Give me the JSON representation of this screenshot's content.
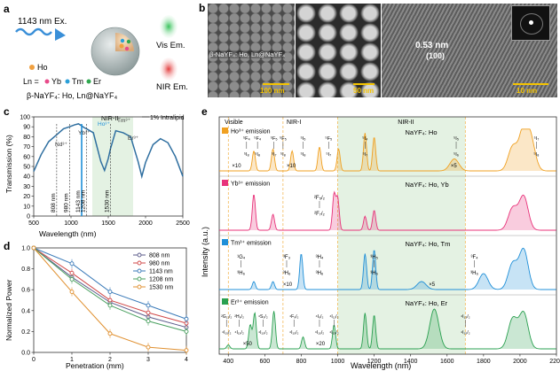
{
  "panels": {
    "a": {
      "letter": "a",
      "excitation": "1143 nm Ex.",
      "vis": "Vis Em.",
      "nir": "NIR Em.",
      "ho": "Ho",
      "ln_prefix": "Ln =",
      "yb": "Yb",
      "tm": "Tm",
      "er": "Er",
      "formula": "β-NaYF₄: Ho, Ln@NaYF₄",
      "colors": {
        "ho": "#f0a040",
        "yb": "#e84a8a",
        "tm": "#2a9fd8",
        "er": "#2fa84f"
      }
    },
    "b": {
      "letter": "b",
      "label1": "β-NaYF₄: Ho, Ln@NaYF₄",
      "scale1": "100 nm",
      "scale2": "50 nm",
      "dspacing": "0.53 nm",
      "plane": "(100)",
      "scale3": "10 nm"
    },
    "c": {
      "letter": "c"
    },
    "d": {
      "letter": "d"
    },
    "e": {
      "letter": "e",
      "xlabel": "Wavelength (nm)",
      "ylabel": "Intensity (a.u.)",
      "regions": [
        "Visible",
        "NIR-I",
        "NIR-II"
      ],
      "traces": [
        {
          "label": "Ho³⁺ emission",
          "host": "NaYF₄: Ho",
          "color": "#f0a020"
        },
        {
          "label": "Yb³⁺ emission",
          "host": "NaYF₄: Ho, Yb",
          "color": "#e8337a"
        },
        {
          "label": "Tm³⁺ emission",
          "host": "NaYF₄: Ho, Tm",
          "color": "#1f8fd8"
        },
        {
          "label": "Er³⁺ emission",
          "host": "NaYF₄: Ho, Er",
          "color": "#2aa050"
        }
      ],
      "ho_annot": [
        "⁵F₄",
        "⁵F₄",
        "⁵F₅",
        "⁵F₅",
        "⁵I₅",
        "⁵F₅",
        "⁵I₄",
        "⁵I₅",
        "⁵I₇"
      ],
      "ho_lower": [
        "⁵I₈",
        "⁵I₈",
        "⁵I₇",
        "⁵I₈",
        "⁵I₈",
        "⁵I₇",
        "⁵I₇",
        "⁵I₆",
        "⁵I₈"
      ],
      "ho_mult": [
        "×10",
        "×10",
        "×5"
      ],
      "yb_upper": "²F₅/₂",
      "yb_lower": "²F₇/₂",
      "tm_annot": [
        "¹G₄",
        "³F₃",
        "³H₄",
        "³H₅",
        "³F₄"
      ],
      "tm_lower": [
        "³H₆",
        "³H₆",
        "³H₆",
        "³H₆",
        "³H₆"
      ],
      "tm_mult": [
        "×10",
        "×5"
      ],
      "er_annot": [
        "²G₁₁/₂",
        "²H₉/₂",
        "⁴S₃/₂",
        "⁴F₉/₂",
        "⁴I₉/₂",
        "⁴I₁₁/₂",
        "⁴I₁₃/₂"
      ],
      "er_lower": [
        "⁴I₁₅/₂",
        "⁴I₁₅/₂",
        "⁴I₁₅/₂",
        "⁴I₁₅/₂",
        "⁴I₁₅/₂",
        "⁴I₁₅/₂",
        "⁴I₁₅/₂"
      ],
      "er_mult": [
        "×50",
        "×20"
      ]
    }
  },
  "chart_data": [
    {
      "type": "line",
      "title": "",
      "xlabel": "Wavelength (nm)",
      "ylabel": "Transmission (%)",
      "xlim": [
        500,
        2500
      ],
      "ylim": [
        0,
        100
      ],
      "xticks": [
        500,
        1000,
        1500,
        2000,
        2500
      ],
      "yticks": [
        0,
        10,
        20,
        30,
        40,
        50,
        60,
        70,
        80,
        90,
        100
      ],
      "legend": "— 1% Intralipid",
      "windows": [
        "NIR-II"
      ],
      "markers": [
        "Nd³⁺",
        "Yb³⁺",
        "Ho³⁺",
        "Tm³⁺",
        "Er³⁺"
      ],
      "vlines": [
        "808 nm",
        "980 nm",
        "1143 nm",
        "1208 nm",
        "1530 nm"
      ],
      "series": [
        {
          "name": "1% Intralipid",
          "x": [
            500,
            600,
            700,
            808,
            900,
            980,
            1050,
            1100,
            1143,
            1180,
            1208,
            1300,
            1400,
            1450,
            1500,
            1530,
            1600,
            1700,
            1800,
            1900,
            1950,
            2000,
            2100,
            2200,
            2300,
            2400,
            2500
          ],
          "y": [
            45,
            62,
            75,
            82,
            88,
            90,
            92,
            93,
            91,
            89,
            88,
            84,
            55,
            46,
            58,
            68,
            86,
            84,
            80,
            55,
            40,
            54,
            72,
            78,
            74,
            60,
            40
          ]
        }
      ]
    },
    {
      "type": "line",
      "xlabel": "Penetration (mm)",
      "ylabel": "Normalized Power",
      "xlim": [
        0,
        4
      ],
      "ylim": [
        0,
        1.0
      ],
      "xticks": [
        0,
        1,
        2,
        3,
        4
      ],
      "yticks": [
        0.0,
        0.2,
        0.4,
        0.6,
        0.8,
        1.0
      ],
      "legend": "top-right",
      "x": [
        0,
        1,
        2,
        3,
        4
      ],
      "series": [
        {
          "name": "808 nm",
          "color": "#5a5a8a",
          "values": [
            1.0,
            0.72,
            0.48,
            0.34,
            0.24
          ]
        },
        {
          "name": "980 nm",
          "color": "#d04848",
          "values": [
            1.0,
            0.76,
            0.5,
            0.38,
            0.28
          ]
        },
        {
          "name": "1143 nm",
          "color": "#3a7ab8",
          "values": [
            1.0,
            0.85,
            0.58,
            0.45,
            0.32
          ]
        },
        {
          "name": "1208 nm",
          "color": "#4aa060",
          "values": [
            1.0,
            0.7,
            0.45,
            0.3,
            0.2
          ]
        },
        {
          "name": "1530 nm",
          "color": "#e09030",
          "values": [
            1.0,
            0.58,
            0.18,
            0.05,
            0.02
          ]
        }
      ]
    },
    {
      "type": "line",
      "xlabel": "Wavelength (nm)",
      "ylabel": "Intensity (a.u.)",
      "xlim": [
        350,
        2200
      ],
      "xticks": [
        400,
        600,
        800,
        1000,
        1200,
        1400,
        1600,
        1800,
        2000,
        2200
      ],
      "series": [
        {
          "name": "NaYF₄: Ho",
          "peaks": [
            [
              540,
              0.5
            ],
            [
              645,
              0.55
            ],
            [
              750,
              0.5
            ],
            [
              900,
              0.6
            ],
            [
              1005,
              0.55
            ],
            [
              1150,
              0.95
            ],
            [
              1200,
              0.85
            ],
            [
              1640,
              0.3
            ],
            [
              1960,
              0.6
            ],
            [
              2020,
              1.0
            ],
            [
              2060,
              0.7
            ]
          ]
        },
        {
          "name": "NaYF₄: Ho, Yb",
          "peaks": [
            [
              540,
              0.9
            ],
            [
              645,
              0.4
            ],
            [
              980,
              0.9
            ],
            [
              1000,
              0.8
            ],
            [
              1150,
              0.35
            ],
            [
              1200,
              0.5
            ],
            [
              1960,
              0.55
            ],
            [
              2020,
              0.85
            ]
          ]
        },
        {
          "name": "NaYF₄: Ho, Tm",
          "peaks": [
            [
              540,
              0.2
            ],
            [
              645,
              0.2
            ],
            [
              800,
              0.9
            ],
            [
              1150,
              0.9
            ],
            [
              1200,
              1.0
            ],
            [
              1460,
              0.2
            ],
            [
              1800,
              0.4
            ],
            [
              1960,
              0.65
            ],
            [
              2020,
              1.0
            ]
          ]
        },
        {
          "name": "NaYF₄: Ho, Er",
          "peaks": [
            [
              400,
              0.1
            ],
            [
              520,
              0.6
            ],
            [
              545,
              0.9
            ],
            [
              650,
              0.95
            ],
            [
              810,
              0.3
            ],
            [
              980,
              0.6
            ],
            [
              1150,
              0.9
            ],
            [
              1200,
              0.85
            ],
            [
              1530,
              1.0
            ],
            [
              1960,
              0.75
            ],
            [
              2020,
              0.9
            ]
          ]
        }
      ]
    }
  ]
}
